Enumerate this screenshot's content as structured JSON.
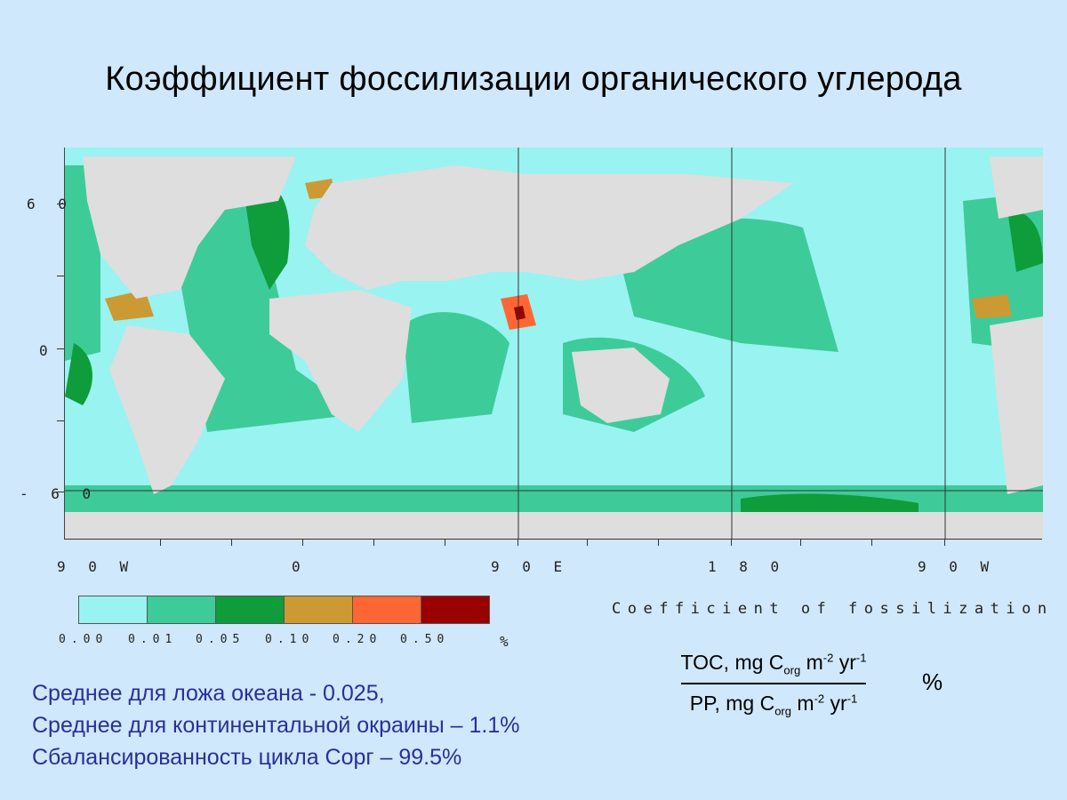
{
  "title": "Коэффициент фоссилизации органического углерода",
  "map": {
    "lat_labels": [
      "6 0",
      "0",
      "- 6 0"
    ],
    "lon_labels": [
      "9 0  W",
      "0",
      "9 0  E",
      "1 8 0",
      "9 0  W"
    ],
    "colors": {
      "land": "#dedede",
      "class1": "#99f3f1",
      "class2": "#3dcb9a",
      "class3": "#0f9c3a",
      "class4": "#cc9a33",
      "class5": "#ff6633",
      "class6": "#990000"
    }
  },
  "legend": {
    "ticks": [
      "0.00",
      "0.01",
      "0.05",
      "0.10",
      "0.20",
      "0.50",
      "%"
    ],
    "caption": "Coefficient of fossilization"
  },
  "formula": {
    "num_prefix": "TOC, mg C",
    "num_sub": "org",
    "num_mid": " m",
    "num_sup1": "-2",
    "num_suffix": " yr",
    "num_sup2": "-1",
    "den_prefix": "PP, mg C",
    "den_sub": "org",
    "den_mid": " m",
    "den_sup1": "-2",
    "den_suffix": " yr",
    "den_sup2": "-1",
    "unit": "%"
  },
  "summary": [
    "Среднее для ложа океана - 0.025,",
    "Среднее для континентальной окраины – 1.1%",
    "Сбалансированность цикла Сорг – 99.5%"
  ]
}
